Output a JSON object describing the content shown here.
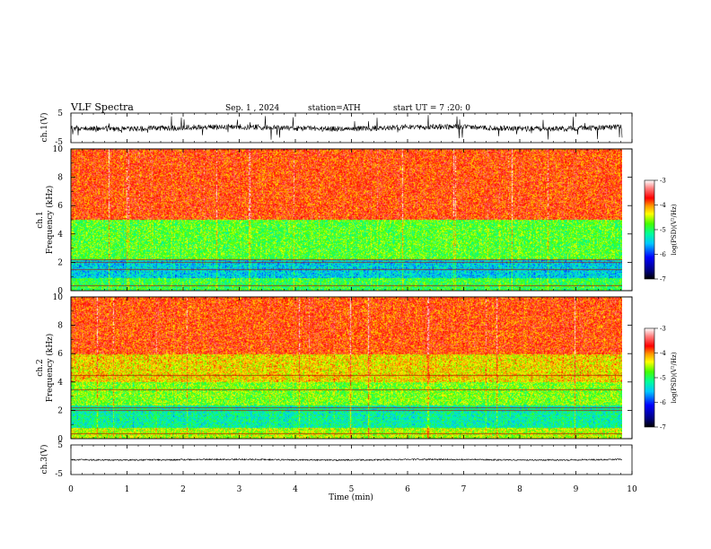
{
  "header": {
    "title": "VLF Spectra",
    "date": "Sep. 1 , 2024",
    "station": "station=ATH",
    "start": "start UT =  7 :20: 0"
  },
  "chart_data": [
    {
      "type": "line",
      "name": "ch1-waveform",
      "ylabel": "ch.1(V)",
      "ylim": [
        -5,
        5
      ],
      "y_ticks": [
        "5",
        "-5"
      ],
      "xlim": [
        0,
        10
      ]
    },
    {
      "type": "heatmap",
      "name": "ch1-spectrogram",
      "ylabel_line1": "ch.1",
      "ylabel_line2": "Frequency (kHz)",
      "ylim": [
        0,
        10
      ],
      "y_ticks": [
        "0",
        "2",
        "4",
        "6",
        "8",
        "10"
      ],
      "xlim": [
        0,
        10
      ],
      "colorbar": {
        "label": "log(PSD)(V²/Hz)",
        "ticks": [
          "-3",
          "-4",
          "-5",
          "-6",
          "-7"
        ],
        "range": [
          -7,
          -3
        ]
      }
    },
    {
      "type": "heatmap",
      "name": "ch2-spectrogram",
      "ylabel_line1": "ch.2",
      "ylabel_line2": "Frequency (kHz)",
      "ylim": [
        0,
        10
      ],
      "y_ticks": [
        "0",
        "2",
        "4",
        "6",
        "8",
        "10"
      ],
      "xlim": [
        0,
        10
      ],
      "colorbar": {
        "label": "log(PSD)(V²/Hz)",
        "ticks": [
          "-3",
          "-4",
          "-5",
          "-6",
          "-7"
        ],
        "range": [
          -7,
          -3
        ]
      }
    },
    {
      "type": "line",
      "name": "ch3-waveform",
      "ylabel": "ch.3(V)",
      "ylim": [
        -5,
        5
      ],
      "y_ticks": [
        "5",
        "-5"
      ],
      "xlim": [
        0,
        10
      ]
    }
  ],
  "xaxis": {
    "label": "Time (min)",
    "ticks": [
      "0",
      "1",
      "2",
      "3",
      "4",
      "5",
      "6",
      "7",
      "8",
      "9",
      "10"
    ]
  }
}
